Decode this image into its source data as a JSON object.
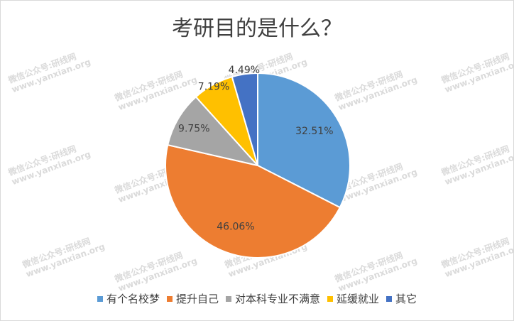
{
  "watermark": [
    "微信公众号:研线网",
    "www.yanxian.org"
  ],
  "chart_data": {
    "type": "pie",
    "title": "考研目的是什么？",
    "categories": [
      "有个名校梦",
      "提升自己",
      "对本科专业不满意",
      "延缓就业",
      "其它"
    ],
    "values": [
      32.51,
      46.06,
      9.75,
      7.19,
      4.49
    ],
    "data_labels": [
      "32.51%",
      "46.06%",
      "9.75%",
      "7.19%",
      "4.49%"
    ],
    "colors": [
      "#5B9BD5",
      "#ED7D31",
      "#A5A5A5",
      "#FFC000",
      "#4472C4"
    ],
    "legend_position": "bottom",
    "start": "top, clockwise"
  }
}
